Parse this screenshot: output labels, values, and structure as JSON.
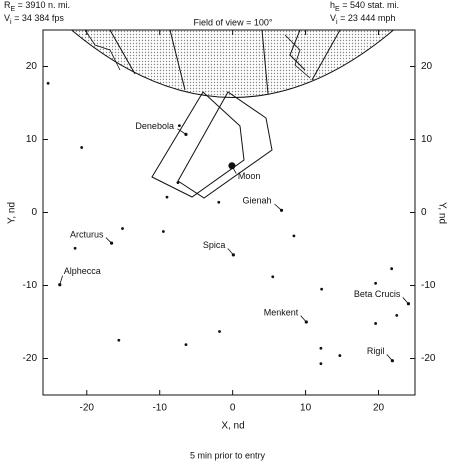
{
  "header": {
    "left": [
      {
        "main": "R",
        "sub": "E",
        "rest": " = 3910 n. mi."
      },
      {
        "main": "V",
        "sub": "i",
        "rest": " = 34 384 fps"
      }
    ],
    "right": [
      {
        "main": "h",
        "sub": "E",
        "rest": " = 540 stat. mi."
      },
      {
        "main": "V",
        "sub": "i",
        "rest": " = 23 444 mph"
      }
    ]
  },
  "chart_data": {
    "type": "scatter",
    "title": "Field of view = 100°",
    "x_label": "X, nd",
    "y_label": "Y, nd",
    "xlim": [
      -26,
      25
    ],
    "ylim": [
      -25,
      25
    ],
    "xticks": [
      -20,
      -10,
      0,
      10,
      20
    ],
    "yticks": [
      -20,
      -10,
      0,
      10,
      20
    ],
    "labeled_points": [
      {
        "label": "Denebola",
        "x": -6.4,
        "y": 10.7
      },
      {
        "label": "Moon",
        "x": -0.1,
        "y": 6.4
      },
      {
        "label": "Gienah",
        "x": 6.7,
        "y": 0.3
      },
      {
        "label": "Arcturus",
        "x": -16.6,
        "y": -4.2
      },
      {
        "label": "Spica",
        "x": 0.1,
        "y": -5.8
      },
      {
        "label": "Alphecca",
        "x": -23.7,
        "y": -9.9
      },
      {
        "label": "Menkent",
        "x": 10.1,
        "y": -15
      },
      {
        "label": "Beta Crucis",
        "x": 24.1,
        "y": -12.5
      },
      {
        "label": "Rigil",
        "x": 21.9,
        "y": -20.3
      }
    ],
    "points": {
      "x": [
        -25.3,
        -20.7,
        -7.3,
        -7.5,
        -9,
        -1.9,
        8.4,
        -15.1,
        -9.5,
        -21.6,
        5.5,
        12.2,
        21.8,
        19.6,
        19.6,
        -1.8,
        -15.6,
        -6.4,
        12.1,
        14.7,
        12.1,
        22.5
      ],
      "y": [
        17.7,
        8.9,
        11.9,
        4.1,
        2.1,
        1.4,
        -3.2,
        -2.2,
        -2.6,
        -4.9,
        -8.8,
        -10.5,
        -7.7,
        -9.7,
        -15.2,
        -16.3,
        -17.5,
        -18.1,
        -18.6,
        -19.6,
        -20.7,
        -14.1
      ]
    }
  },
  "caption": "5 min prior to entry"
}
